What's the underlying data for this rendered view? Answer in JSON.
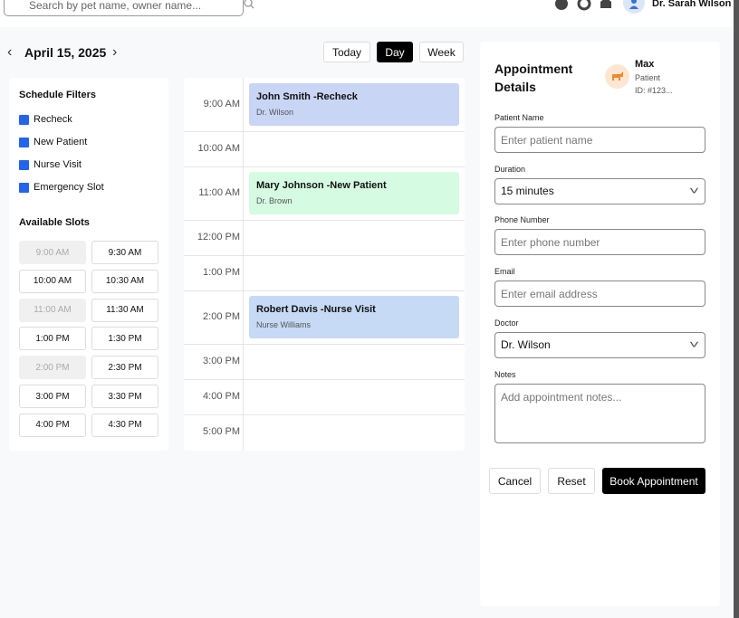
{
  "header": {
    "search_placeholder": "Search by pet name, owner name...",
    "user_name": "Dr. Sarah Wilson"
  },
  "date_nav": {
    "date": "April 15, 2025",
    "views": [
      {
        "label": "Today"
      },
      {
        "label": "Day",
        "active": true
      },
      {
        "label": "Week"
      }
    ]
  },
  "filters": {
    "title": "Schedule Filters",
    "items": [
      "Recheck",
      "New Patient",
      "Nurse Visit",
      "Emergency Slot"
    ]
  },
  "slots": {
    "title": "Available Slots",
    "items": [
      {
        "time": "9:00 AM",
        "available": false
      },
      {
        "time": "9:30 AM",
        "available": true
      },
      {
        "time": "10:00 AM",
        "available": true
      },
      {
        "time": "10:30 AM",
        "available": true
      },
      {
        "time": "11:00 AM",
        "available": false
      },
      {
        "time": "11:30 AM",
        "available": true
      },
      {
        "time": "1:00 PM",
        "available": true
      },
      {
        "time": "1:30 PM",
        "available": true
      },
      {
        "time": "2:00 PM",
        "available": false
      },
      {
        "time": "2:30 PM",
        "available": true
      },
      {
        "time": "3:00 PM",
        "available": true
      },
      {
        "time": "3:30 PM",
        "available": true
      },
      {
        "time": "4:00 PM",
        "available": true
      },
      {
        "time": "4:30 PM",
        "available": true
      }
    ]
  },
  "schedule": {
    "rows": [
      {
        "time": "9:00 AM",
        "appointment": {
          "title": "John Smith -Recheck",
          "doctor": "Dr. Wilson",
          "color": "#c9d5f4"
        }
      },
      {
        "time": "10:00 AM"
      },
      {
        "time": "11:00 AM",
        "appointment": {
          "title": "Mary Johnson -New Patient",
          "doctor": "Dr. Brown",
          "color": "#d5fbe2"
        }
      },
      {
        "time": "12:00 PM"
      },
      {
        "time": "1:00 PM"
      },
      {
        "time": "2:00 PM",
        "appointment": {
          "title": "Robert Davis -Nurse Visit",
          "doctor": "Nurse Williams",
          "color": "#c6daf5"
        }
      },
      {
        "time": "3:00 PM"
      },
      {
        "time": "4:00 PM"
      },
      {
        "time": "5:00 PM"
      }
    ]
  },
  "details": {
    "title": "Appointment Details",
    "patient": {
      "name": "Max",
      "role": "Patient",
      "id": "ID: #123..."
    },
    "fields": [
      {
        "label": "Patient Name",
        "placeholder": "Enter patient name"
      },
      {
        "label": "Duration",
        "value": "15 minutes",
        "select": true
      },
      {
        "label": "Phone Number",
        "placeholder": "Enter phone number"
      },
      {
        "label": "Email",
        "placeholder": "Enter email address"
      },
      {
        "label": "Doctor",
        "value": "Dr. Wilson",
        "select": true
      },
      {
        "label": "Notes",
        "placeholder": "Add appointment notes...",
        "multiline": true
      }
    ],
    "buttons": [
      {
        "label": "Cancel"
      },
      {
        "label": "Reset"
      },
      {
        "label": "Book Appointment",
        "primary": true
      }
    ]
  }
}
